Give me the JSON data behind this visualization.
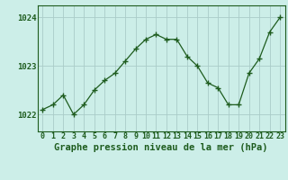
{
  "x": [
    0,
    1,
    2,
    3,
    4,
    5,
    6,
    7,
    8,
    9,
    10,
    11,
    12,
    13,
    14,
    15,
    16,
    17,
    18,
    19,
    20,
    21,
    22,
    23
  ],
  "y": [
    1022.1,
    1022.2,
    1022.4,
    1022.0,
    1022.2,
    1022.5,
    1022.7,
    1022.85,
    1023.1,
    1023.35,
    1023.55,
    1023.65,
    1023.55,
    1023.55,
    1023.2,
    1023.0,
    1022.65,
    1022.55,
    1022.2,
    1022.2,
    1022.85,
    1023.15,
    1023.7,
    1024.0
  ],
  "line_color": "#1e5c1e",
  "marker_color": "#1e5c1e",
  "bg_color": "#cceee8",
  "grid_color": "#aaccc8",
  "axis_label_color": "#1e5c1e",
  "title": "Graphe pression niveau de la mer (hPa)",
  "yticks": [
    1022,
    1023,
    1024
  ],
  "ylim": [
    1021.65,
    1024.25
  ],
  "xlim": [
    -0.5,
    23.5
  ],
  "title_fontsize": 7.5,
  "tick_fontsize": 6.0
}
